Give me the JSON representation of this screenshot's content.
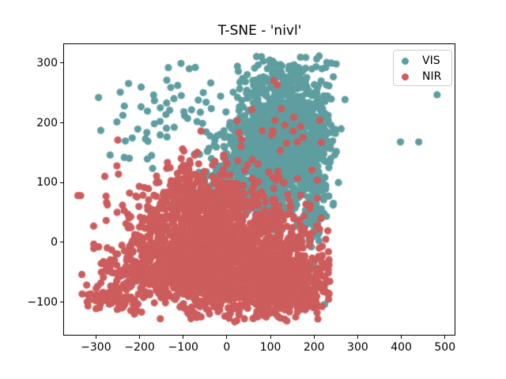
{
  "figure": {
    "background": "#ffffff"
  },
  "chart_data": {
    "type": "scatter",
    "title": "T-SNE - 'nivl'",
    "xlabel": "",
    "ylabel": "",
    "xlim": [
      -375,
      524
    ],
    "ylim": [
      -156,
      333
    ],
    "x_ticks": [
      -300,
      -200,
      -100,
      0,
      100,
      200,
      300,
      400,
      500
    ],
    "y_ticks": [
      -100,
      0,
      100,
      200,
      300
    ],
    "grid": false,
    "marker": {
      "shape": "circle",
      "radius_px": 4.6
    },
    "seed": 7,
    "legend": {
      "position": "upper right",
      "entries": [
        {
          "label": "VIS",
          "color": "#5F9EA0"
        },
        {
          "label": "NIR",
          "color": "#CD5C5C"
        }
      ]
    },
    "series": [
      {
        "name": "VIS",
        "color": "#5F9EA0",
        "clusters": [
          {
            "cx": 115,
            "cy": 200,
            "sx": 58,
            "sy": 52,
            "n": 600,
            "xmax": 252,
            "ymax": 312
          },
          {
            "cx": 85,
            "cy": 135,
            "sx": 62,
            "sy": 38,
            "n": 420,
            "xmax": 252
          },
          {
            "cx": 168,
            "cy": 180,
            "sx": 44,
            "sy": 58,
            "n": 480,
            "xmax": 252,
            "ymax": 312
          },
          {
            "cx": 70,
            "cy": 75,
            "sx": 85,
            "sy": 26,
            "n": 110
          },
          {
            "cx": 190,
            "cy": 10,
            "sx": 16,
            "sy": 48,
            "n": 55,
            "xmax": 225
          },
          {
            "cx": -130,
            "cy": 215,
            "sx": 78,
            "sy": 60,
            "n": 55,
            "ymax": 312
          },
          {
            "cx": -215,
            "cy": 140,
            "sx": 40,
            "sy": 22,
            "n": 7
          }
        ],
        "outlier_points": [
          [
            398,
            168
          ],
          [
            440,
            168
          ],
          [
            482,
            247
          ],
          [
            271,
            239
          ],
          [
            262,
            190
          ]
        ]
      },
      {
        "name": "NIR",
        "color": "#CD5C5C",
        "clusters": [
          {
            "cx": 45,
            "cy": -45,
            "sx": 95,
            "sy": 42,
            "n": 900,
            "xmax": 237,
            "ymin": -128
          },
          {
            "cx": -90,
            "cy": -25,
            "sx": 75,
            "sy": 45,
            "n": 650,
            "xmin": -338,
            "ymin": -128
          },
          {
            "cx": -5,
            "cy": 45,
            "sx": 95,
            "sy": 36,
            "n": 450,
            "xmax": 237
          },
          {
            "cx": 135,
            "cy": -70,
            "sx": 55,
            "sy": 28,
            "n": 350,
            "xmax": 237,
            "ymin": -132
          },
          {
            "cx": -65,
            "cy": 95,
            "sx": 52,
            "sy": 26,
            "n": 130
          },
          {
            "cx": -225,
            "cy": -55,
            "sx": 48,
            "sy": 30,
            "n": 110,
            "xmin": -338,
            "ymin": -120
          },
          {
            "cx": -285,
            "cy": -92,
            "sx": 36,
            "sy": 9,
            "n": 45,
            "xmin": -336,
            "ymin": -112
          },
          {
            "cx": 110,
            "cy": 150,
            "sx": 75,
            "sy": 50,
            "n": 34,
            "xmax": 230
          },
          {
            "cx": -175,
            "cy": 75,
            "sx": 60,
            "sy": 38,
            "n": 22,
            "ymax": 130
          }
        ],
        "outlier_points": [
          [
            -252,
            128
          ],
          [
            -130,
            125
          ],
          [
            -161,
            111
          ],
          [
            5,
            -127
          ],
          [
            18,
            -133
          ]
        ]
      }
    ]
  }
}
